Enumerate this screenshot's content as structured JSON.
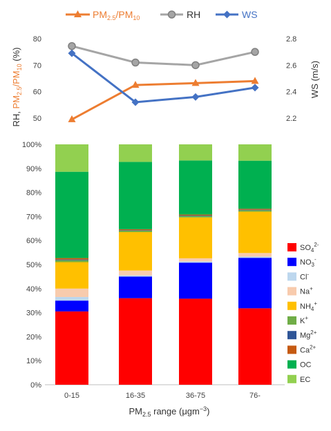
{
  "chart_data": [
    {
      "type": "line",
      "title": "",
      "categories": [
        "0-15",
        "16-35",
        "36-75",
        "76-"
      ],
      "ylabel_left": "RH, PM2.5/PM10 (%)",
      "ylabel_left_parts": {
        "prefix": "RH, ",
        "pm": "PM",
        "sub1": "2.5",
        "mid": "/PM",
        "sub2": "10",
        "suffix": " (%)"
      },
      "ylabel_right": "WS (m/s)",
      "ylim_left": [
        50,
        80
      ],
      "ylim_right": [
        2.2,
        2.8
      ],
      "yticks_left": [
        "50",
        "60",
        "70",
        "80"
      ],
      "yticks_right": [
        "2.2",
        "2.4",
        "2.6",
        "2.8"
      ],
      "series": [
        {
          "name": "PM2.5/PM10",
          "label_main": "PM",
          "label_sub1": "2.5",
          "label_mid": "/PM",
          "label_sub2": "10",
          "axis": "left",
          "color": "#ED7D31",
          "marker": "triangle",
          "values": [
            49.5,
            62.5,
            63.2,
            64.0
          ]
        },
        {
          "name": "RH",
          "axis": "left",
          "color": "#A5A5A5",
          "marker": "circle",
          "values": [
            77.2,
            71.0,
            70.0,
            75.0
          ]
        },
        {
          "name": "WS",
          "axis": "right",
          "color": "#4472C4",
          "marker": "diamond",
          "values": [
            2.69,
            2.32,
            2.36,
            2.43
          ]
        }
      ]
    },
    {
      "type": "bar",
      "stacked": true,
      "percent": true,
      "categories": [
        "0-15",
        "16-35",
        "36-75",
        "76-"
      ],
      "xlabel": "PM2.5 range (μgm−3)",
      "xlabel_parts": {
        "pm": "PM",
        "sub": "2.5",
        "rest": " range (μgm",
        "sup": "−3",
        "close": ")"
      },
      "ylim": [
        0,
        100
      ],
      "yticks": [
        "0%",
        "10%",
        "20%",
        "30%",
        "40%",
        "50%",
        "60%",
        "70%",
        "80%",
        "90%",
        "100%"
      ],
      "legend_position": "right",
      "series": [
        {
          "name": "SO42-",
          "base": "SO",
          "sub": "4",
          "sup": "2-",
          "color": "#FF0000",
          "values": [
            30.5,
            36.0,
            35.8,
            31.8
          ]
        },
        {
          "name": "NO3-",
          "base": "NO",
          "sub": "3",
          "sup": "-",
          "color": "#0000FF",
          "values": [
            4.5,
            9.0,
            15.0,
            21.0
          ]
        },
        {
          "name": "Cl-",
          "base": "Cl",
          "sub": "",
          "sup": "-",
          "color": "#BDD7EE",
          "values": [
            1.5,
            0.5,
            0.5,
            0.5
          ]
        },
        {
          "name": "Na+",
          "base": "Na",
          "sub": "",
          "sup": "+",
          "color": "#F8CBAD",
          "values": [
            3.5,
            2.0,
            1.3,
            1.5
          ]
        },
        {
          "name": "NH4+",
          "base": "NH",
          "sub": "4",
          "sup": "+",
          "color": "#FFC000",
          "values": [
            11.0,
            16.0,
            17.0,
            17.2
          ]
        },
        {
          "name": "K+",
          "base": "K",
          "sub": "",
          "sup": "+",
          "color": "#70AD47",
          "values": [
            0.8,
            0.6,
            0.6,
            0.6
          ]
        },
        {
          "name": "Mg2+",
          "base": "Mg",
          "sub": "",
          "sup": "2+",
          "color": "#2F5597",
          "values": [
            0.3,
            0.2,
            0.2,
            0.2
          ]
        },
        {
          "name": "Ca2+",
          "base": "Ca",
          "sub": "",
          "sup": "2+",
          "color": "#C55A11",
          "values": [
            0.6,
            0.4,
            0.4,
            0.4
          ]
        },
        {
          "name": "OC",
          "base": "OC",
          "sub": "",
          "sup": "",
          "color": "#00B050",
          "values": [
            35.9,
            28.0,
            22.5,
            20.0
          ]
        },
        {
          "name": "EC",
          "base": "EC",
          "sub": "",
          "sup": "",
          "color": "#92D050",
          "values": [
            11.4,
            7.3,
            6.7,
            6.8
          ]
        }
      ]
    }
  ]
}
